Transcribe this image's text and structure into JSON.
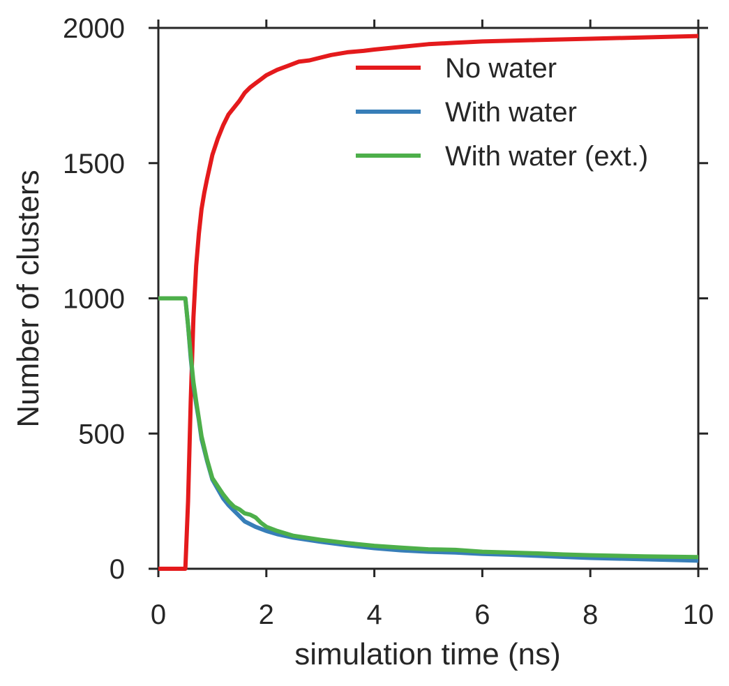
{
  "chart_data": {
    "type": "line",
    "title": "",
    "xlabel": "simulation time (ns)",
    "ylabel": "Number of clusters",
    "xlim": [
      0,
      10
    ],
    "ylim": [
      0,
      2000
    ],
    "xticks": [
      0,
      2,
      4,
      6,
      8,
      10
    ],
    "yticks": [
      0,
      500,
      1000,
      1500,
      2000
    ],
    "xtick_labels": [
      "0",
      "2",
      "4",
      "6",
      "8",
      "10"
    ],
    "ytick_labels": [
      "0",
      "500",
      "1000",
      "1500",
      "2000"
    ],
    "grid": false,
    "legend_position": "top-right",
    "series": [
      {
        "name": "No water",
        "color": "#e41a1c",
        "x": [
          0,
          0.45,
          0.5,
          0.55,
          0.6,
          0.65,
          0.7,
          0.75,
          0.8,
          0.85,
          0.9,
          1.0,
          1.1,
          1.2,
          1.3,
          1.4,
          1.5,
          1.6,
          1.7,
          1.8,
          1.9,
          2.0,
          2.2,
          2.4,
          2.6,
          2.8,
          3.0,
          3.2,
          3.5,
          3.8,
          4.0,
          4.5,
          5.0,
          5.5,
          6.0,
          7.0,
          8.0,
          9.0,
          10.0
        ],
        "y": [
          0,
          0,
          0,
          250,
          620,
          930,
          1120,
          1240,
          1330,
          1390,
          1440,
          1530,
          1590,
          1640,
          1680,
          1705,
          1730,
          1760,
          1780,
          1795,
          1810,
          1825,
          1845,
          1860,
          1875,
          1880,
          1890,
          1900,
          1910,
          1915,
          1920,
          1930,
          1940,
          1945,
          1950,
          1955,
          1960,
          1965,
          1970
        ]
      },
      {
        "name": "With water",
        "color": "#377eb8",
        "x": [
          0,
          0.5,
          0.55,
          0.6,
          0.65,
          0.7,
          0.75,
          0.8,
          0.9,
          1.0,
          1.1,
          1.2,
          1.3,
          1.4,
          1.5,
          1.6,
          1.7,
          1.8,
          2.0,
          2.2,
          2.5,
          3.0,
          3.5,
          4.0,
          4.5,
          5.0,
          5.5,
          6.0,
          6.5,
          7.0,
          7.5,
          8.0,
          9.0,
          10.0
        ],
        "y": [
          1000,
          1000,
          900,
          780,
          680,
          610,
          550,
          480,
          400,
          330,
          295,
          260,
          235,
          215,
          195,
          175,
          165,
          155,
          140,
          128,
          115,
          100,
          87,
          76,
          68,
          63,
          60,
          55,
          52,
          48,
          44,
          40,
          35,
          30
        ]
      },
      {
        "name": "With water (ext.)",
        "color": "#4daf4a",
        "x": [
          0,
          0.5,
          0.55,
          0.6,
          0.65,
          0.7,
          0.75,
          0.8,
          0.9,
          1.0,
          1.1,
          1.2,
          1.3,
          1.4,
          1.5,
          1.6,
          1.7,
          1.8,
          1.9,
          2.0,
          2.2,
          2.5,
          3.0,
          3.5,
          4.0,
          4.5,
          5.0,
          5.5,
          6.0,
          6.5,
          7.0,
          7.5,
          8.0,
          9.0,
          10.0
        ],
        "y": [
          1000,
          1000,
          900,
          790,
          690,
          620,
          555,
          490,
          405,
          335,
          305,
          275,
          250,
          230,
          220,
          205,
          200,
          190,
          170,
          155,
          140,
          122,
          107,
          95,
          85,
          78,
          72,
          70,
          63,
          60,
          57,
          53,
          50,
          46,
          43
        ]
      }
    ]
  }
}
